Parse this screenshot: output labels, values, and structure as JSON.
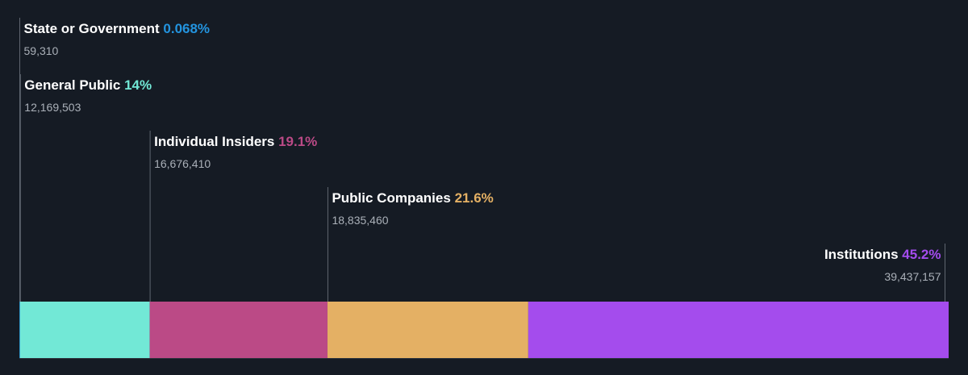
{
  "chart_data": {
    "type": "bar",
    "subtype": "stacked-horizontal-ownership",
    "categories": [
      "State or Government",
      "General Public",
      "Individual Insiders",
      "Public Companies",
      "Institutions"
    ],
    "values": [
      59310,
      12169503,
      16676410,
      18835460,
      39437157
    ],
    "values_display": [
      "59,310",
      "12,169,503",
      "16,676,410",
      "18,835,460",
      "39,437,157"
    ],
    "percent_display": [
      "0.068%",
      "14%",
      "19.1%",
      "21.6%",
      "45.2%"
    ],
    "percents": [
      0.068,
      14,
      19.1,
      21.6,
      45.2
    ],
    "colors": [
      "#2394df",
      "#72e8d6",
      "#bb4a86",
      "#e4b064",
      "#a44ced"
    ],
    "grid": false
  }
}
